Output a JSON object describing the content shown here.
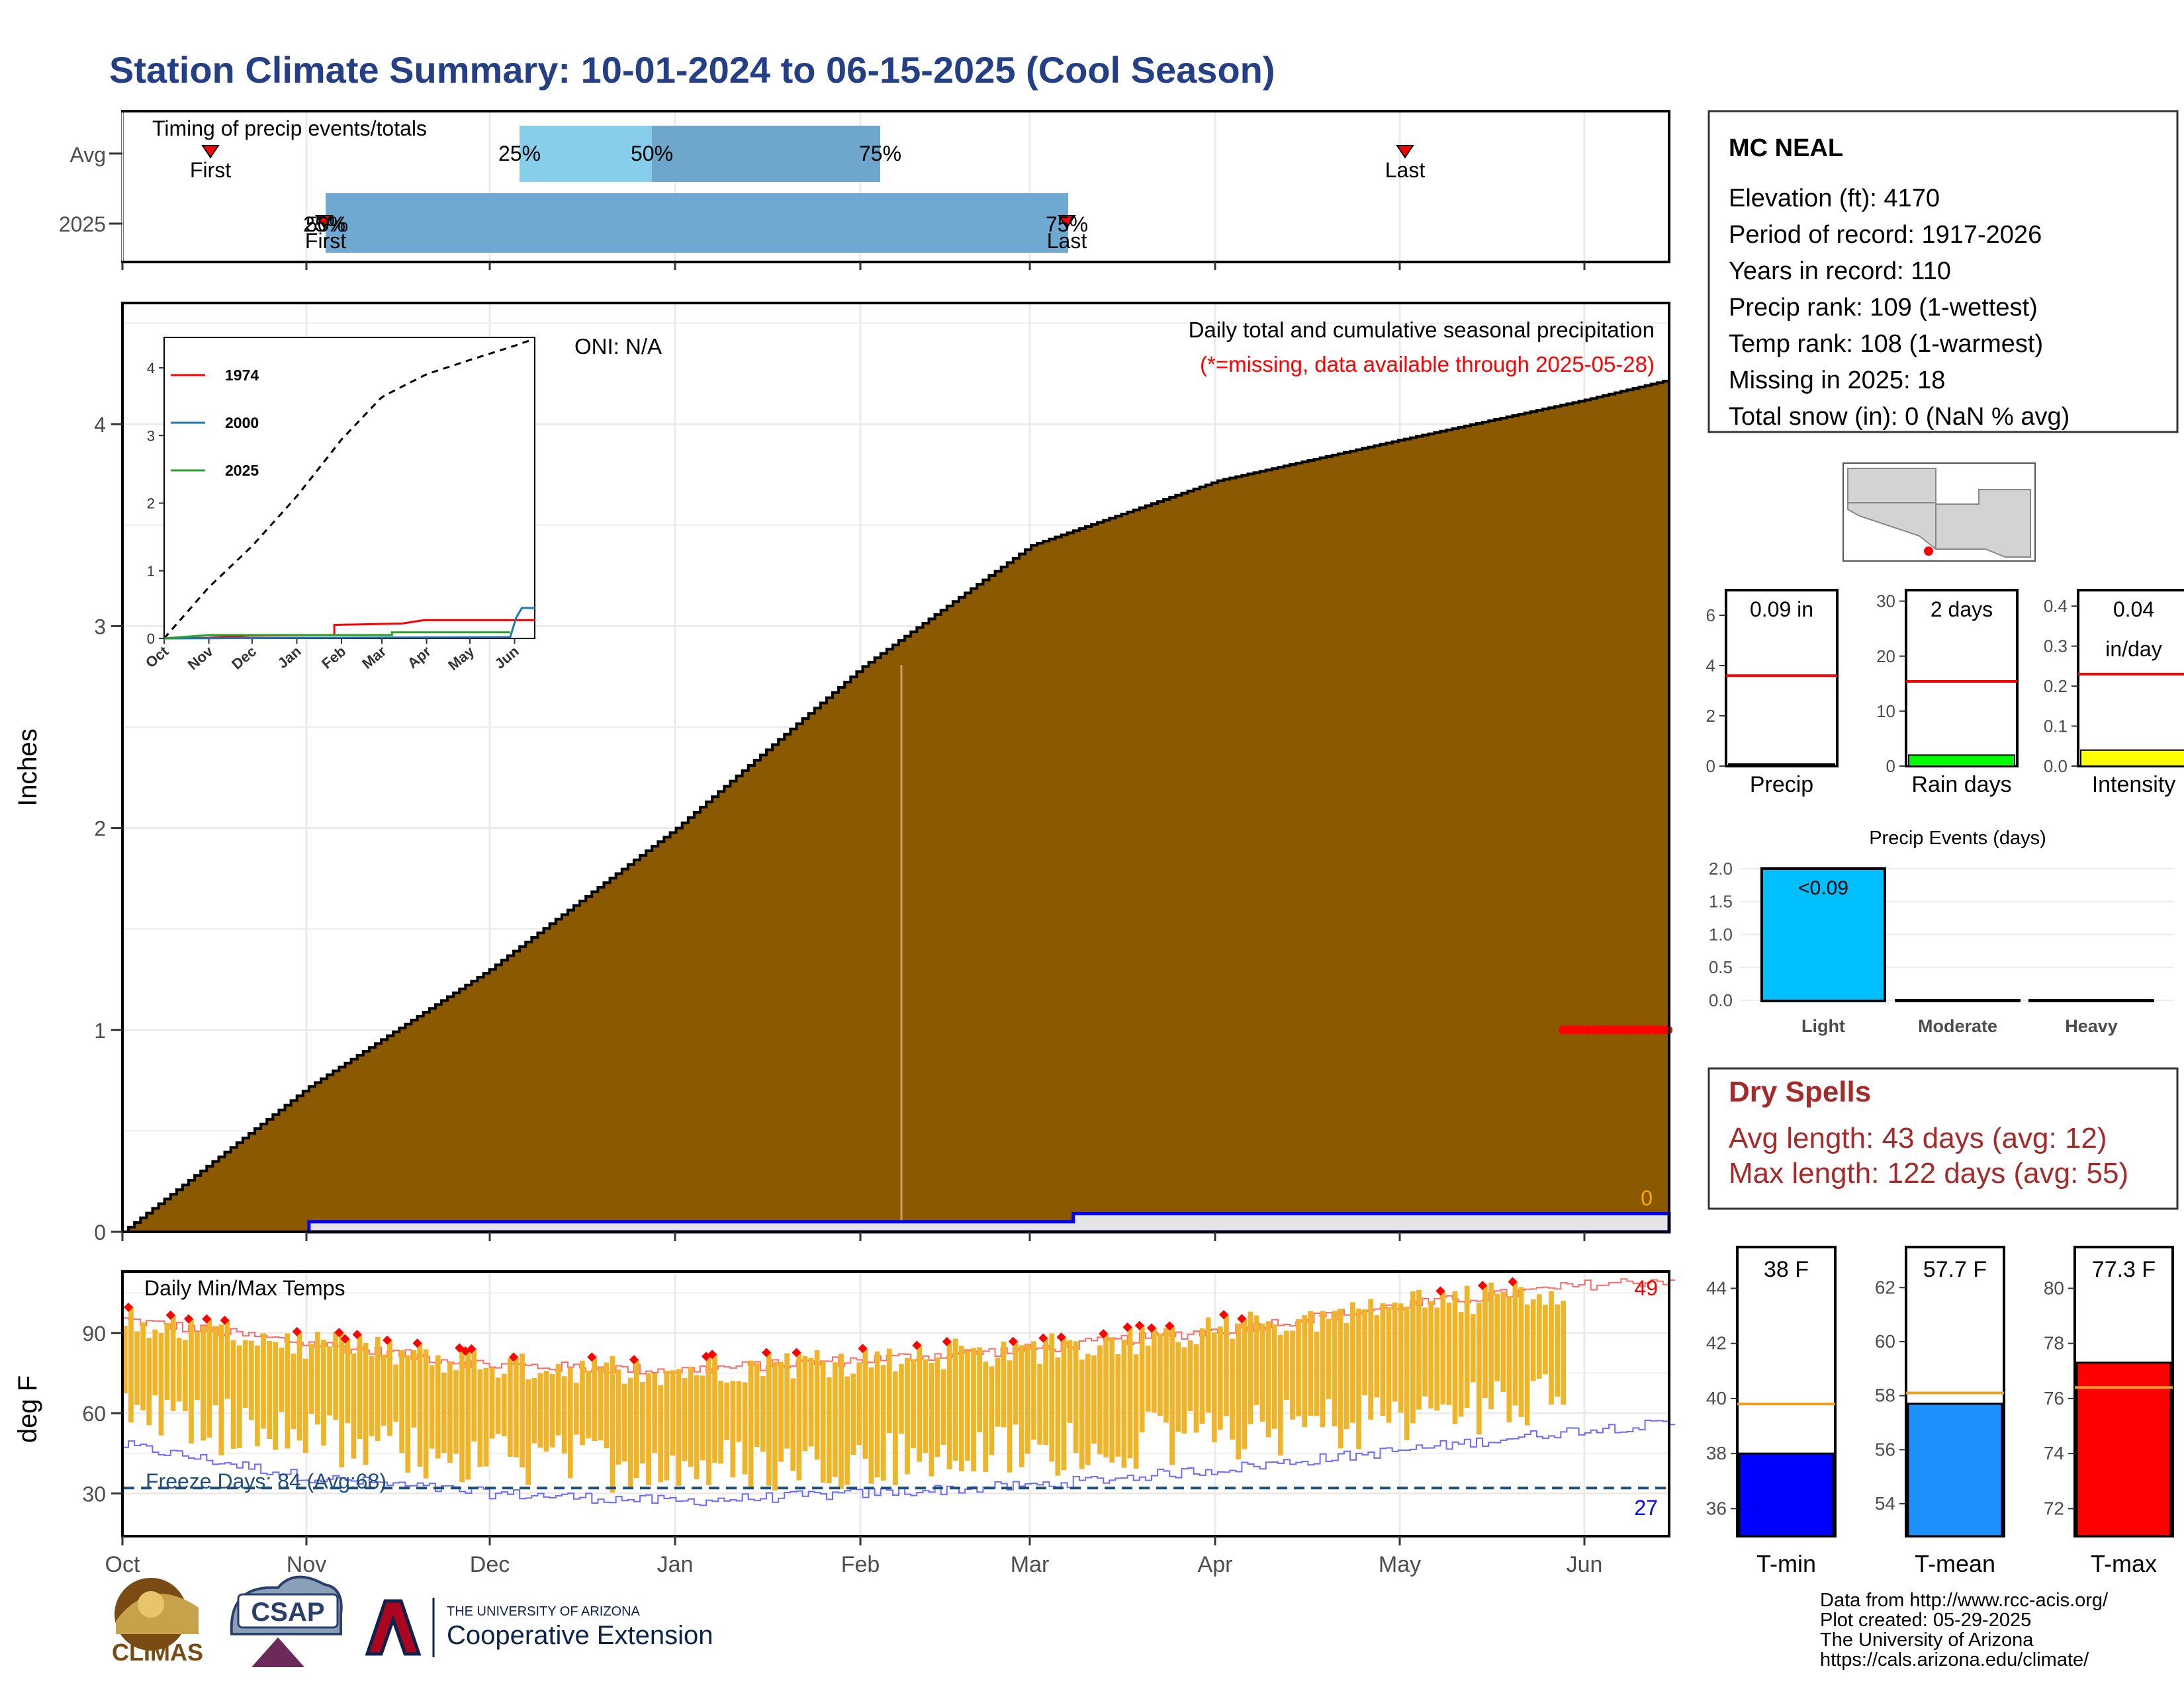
{
  "title": "Station Climate Summary: 10-01-2024 to 06-15-2025 (Cool Season)",
  "colors": {
    "title": "#253f87",
    "cumulative_fill": "#8b5a00",
    "avg_quartile_light": "#87ceeb",
    "avg_quartile_dark": "#6ea6cc",
    "bar_2025": "#6fa8d0",
    "temp_bar": "#f0b429",
    "hot_marker": "#ff0000",
    "cold_marker": "#0000ff",
    "freeze_line": "#1f4e79",
    "missing": "#ff0000",
    "avg_line_red": "#ff0000",
    "avg_line_orange": "#f0a020"
  },
  "icons": [
    "climas-logo",
    "csap-logo",
    "university-of-arizona-logo"
  ],
  "timing": {
    "label": "Timing of precip events/totals",
    "rows": [
      "Avg",
      "2025"
    ],
    "avg": {
      "first": "First",
      "last": "Last",
      "q25": "25%",
      "q50": "50%",
      "q75": "75%"
    },
    "y2025": {
      "first": "First",
      "last": "Last",
      "q25": "25%",
      "q50": "50%",
      "q75": "75%"
    }
  },
  "precip_panel": {
    "caption": "Daily total and cumulative seasonal precipitation",
    "missing_note": "(*=missing, data available through 2025-05-28)",
    "oni": "ONI: N/A",
    "ylabel": "Inches",
    "yticks": [
      "0",
      "1",
      "2",
      "3",
      "4"
    ],
    "end_label": "0"
  },
  "inset": {
    "yticks": [
      "0",
      "1",
      "2",
      "3",
      "4"
    ],
    "xticks": [
      "Oct",
      "Nov",
      "Dec",
      "Jan",
      "Feb",
      "Mar",
      "Apr",
      "May",
      "Jun"
    ],
    "legend": [
      "1974",
      "2000",
      "2025"
    ]
  },
  "temp_panel": {
    "label": "Daily Min/Max Temps",
    "ylabel": "deg F",
    "yticks": [
      "30",
      "60",
      "90"
    ],
    "freeze_text": "Freeze Days: 84 (Avg:68)",
    "hot_count": "49",
    "cold_count": "27"
  },
  "xaxis": {
    "months": [
      "Oct",
      "Nov",
      "Dec",
      "Jan",
      "Feb",
      "Mar",
      "Apr",
      "May",
      "Jun"
    ]
  },
  "station": {
    "name": "MC NEAL",
    "lines": [
      "Elevation (ft): 4170",
      "Period of record: 1917-2026",
      "Years in record: 110",
      "Precip rank: 109 (1-wettest)",
      "Temp rank: 108 (1-warmest)",
      "Missing in 2025: 18",
      "Total snow (in): 0 (NaN % avg)"
    ]
  },
  "mini_bars": [
    {
      "label": "Precip",
      "value_text": "0.09 in",
      "yticks": [
        "0",
        "2",
        "4",
        "6"
      ],
      "ymax": 7,
      "value": 0.09,
      "avg": 3.6,
      "color": "#000000"
    },
    {
      "label": "Rain days",
      "value_text": "2 days",
      "yticks": [
        "0",
        "10",
        "20",
        "30"
      ],
      "ymax": 32,
      "value": 2,
      "avg": 15.4,
      "color": "#00ff00"
    },
    {
      "label": "Intensity",
      "value_text": "0.04",
      "value_text2": "in/day",
      "yticks": [
        "0.0",
        "0.1",
        "0.2",
        "0.3",
        "0.4"
      ],
      "ymax": 0.44,
      "value": 0.04,
      "avg": 0.23,
      "color": "#ffff00"
    }
  ],
  "events": {
    "title": "Precip Events (days)",
    "categories": [
      "Light",
      "Moderate",
      "Heavy"
    ],
    "values": [
      2,
      0,
      0
    ],
    "bar_label": "<0.09",
    "yticks": [
      "0.0",
      "0.5",
      "1.0",
      "1.5",
      "2.0"
    ]
  },
  "dry_spells": {
    "title": "Dry Spells",
    "avg": "Avg length: 43 days (avg: 12)",
    "max": "Max length: 122 days (avg: 55)"
  },
  "temp_bars": [
    {
      "label": "T-min",
      "value_text": "38 F",
      "value": 38.0,
      "avg": 39.8,
      "yticks": [
        "36",
        "38",
        "40",
        "42",
        "44"
      ],
      "ymin": 35,
      "ymax": 45.5,
      "color": "#0000ff"
    },
    {
      "label": "T-mean",
      "value_text": "57.7 F",
      "value": 57.7,
      "avg": 58.1,
      "yticks": [
        "54",
        "56",
        "58",
        "60",
        "62"
      ],
      "ymin": 52.8,
      "ymax": 63.5,
      "color": "#1e90ff"
    },
    {
      "label": "T-max",
      "value_text": "77.3 F",
      "value": 77.3,
      "avg": 76.4,
      "yticks": [
        "72",
        "74",
        "76",
        "78",
        "80"
      ],
      "ymin": 71,
      "ymax": 81.5,
      "color": "#ff0000"
    }
  ],
  "credits": [
    "Data from http://www.rcc-acis.org/",
    "Plot created: 05-29-2025",
    "The University of Arizona",
    "https://cals.arizona.edu/climate/"
  ],
  "logos": {
    "climas": "CLIMAS",
    "csap": "CSAP",
    "ua_line1": "THE UNIVERSITY OF ARIZONA",
    "ua_line2": "Cooperative Extension"
  },
  "chart_data": {
    "type": "area",
    "title": "Daily total and cumulative seasonal precipitation",
    "ylabel": "Inches",
    "ylim": [
      0,
      4.6
    ],
    "x": [
      "2024-10-01",
      "2024-11-01",
      "2024-12-01",
      "2025-01-01",
      "2025-02-01",
      "2025-03-01",
      "2025-04-01",
      "2025-05-01",
      "2025-06-01",
      "2025-06-15"
    ],
    "series": [
      {
        "name": "Avg",
        "values": [
          0,
          0.72,
          1.3,
          2.0,
          2.8,
          3.4,
          3.72,
          3.92,
          4.12,
          4.22
        ]
      },
      {
        "name": "2025",
        "values": [
          0,
          0.05,
          0.05,
          0.05,
          0.05,
          0.09,
          0.09,
          0.09,
          0.09,
          0.09
        ]
      }
    ],
    "missing_from": "2025-05-28",
    "temps": {
      "type": "bar",
      "ylabel": "deg F",
      "ylim": [
        14,
        113
      ],
      "freeze_line": 32,
      "avg_max": [
        95,
        86,
        78,
        76,
        80,
        84,
        91,
        100,
        108,
        110
      ],
      "avg_min": [
        48,
        36,
        30,
        27,
        30,
        33,
        39,
        46,
        54,
        56
      ]
    }
  }
}
